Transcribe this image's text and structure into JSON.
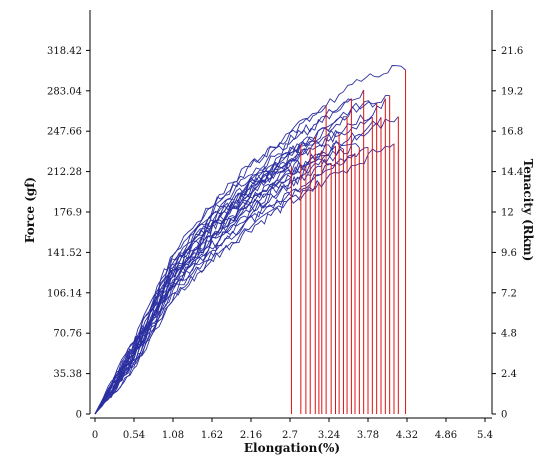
{
  "chart_data": {
    "type": "line",
    "xlabel": "Elongation(%)",
    "ylabel": "Force (gf)",
    "y2label": "Tenacity (Rkm)",
    "xlim": [
      0,
      5.4
    ],
    "ylim": [
      0,
      353.8
    ],
    "y2lim": [
      0,
      24.0
    ],
    "x_ticks": [
      "0",
      "0.54",
      "1.08",
      "1.62",
      "2.16",
      "2.7",
      "3.24",
      "3.78",
      "4.32",
      "4.86",
      "5.4"
    ],
    "y_ticks": [
      "0",
      "35.38",
      "70.76",
      "106.14",
      "141.52",
      "176.9",
      "212.28",
      "247.66",
      "283.04",
      "318.42"
    ],
    "y2_ticks": [
      "0",
      "2.4",
      "4.8",
      "7.2",
      "9.6",
      "12",
      "14.4",
      "16.8",
      "19.2",
      "21.6"
    ],
    "grid": false,
    "series": [
      {
        "color": "#2b2fa0",
        "x": [
          0,
          0.54,
          1.08,
          1.62,
          2.16,
          2.7,
          3.24,
          3.78,
          4.32
        ],
        "y": [
          0,
          55,
          125,
          165,
          198,
          224,
          245,
          262,
          282
        ]
      },
      {
        "color": "#2b2fa0",
        "x": [
          0,
          0.54,
          1.08,
          1.62,
          2.16,
          2.7,
          3.24,
          3.6
        ],
        "y": [
          0,
          62,
          135,
          178,
          210,
          237,
          261,
          280
        ]
      },
      {
        "color": "#2b2fa0",
        "x": [
          0,
          0.54,
          1.08,
          1.62,
          2.16,
          2.7,
          3.24,
          3.78,
          4.2
        ],
        "y": [
          0,
          48,
          115,
          152,
          183,
          208,
          229,
          247,
          265
        ]
      },
      {
        "color": "#2b2fa0",
        "x": [
          0,
          0.54,
          1.08,
          1.62,
          2.16,
          2.7,
          3.24,
          3.78,
          4.1
        ],
        "y": [
          0,
          52,
          120,
          160,
          192,
          218,
          238,
          255,
          270
        ]
      },
      {
        "color": "#2b2fa0",
        "x": [
          0,
          0.54,
          1.08,
          1.62,
          2.16,
          2.7,
          3.24,
          3.5
        ],
        "y": [
          0,
          58,
          130,
          172,
          205,
          231,
          254,
          266
        ]
      },
      {
        "color": "#2b2fa0",
        "x": [
          0,
          0.54,
          1.08,
          1.62,
          2.16,
          2.7,
          3.24,
          3.78,
          4.25
        ],
        "y": [
          0,
          45,
          110,
          146,
          176,
          200,
          222,
          242,
          262
        ]
      }
    ],
    "break_elongations": [
      2.72,
      2.85,
      2.92,
      2.98,
      3.05,
      3.1,
      3.14,
      3.2,
      3.27,
      3.33,
      3.38,
      3.44,
      3.49,
      3.55,
      3.6,
      3.66,
      3.72,
      3.78,
      3.84,
      3.9,
      3.96,
      4.02,
      4.08,
      4.14,
      4.2,
      4.3
    ],
    "break_color": "#e01010"
  }
}
